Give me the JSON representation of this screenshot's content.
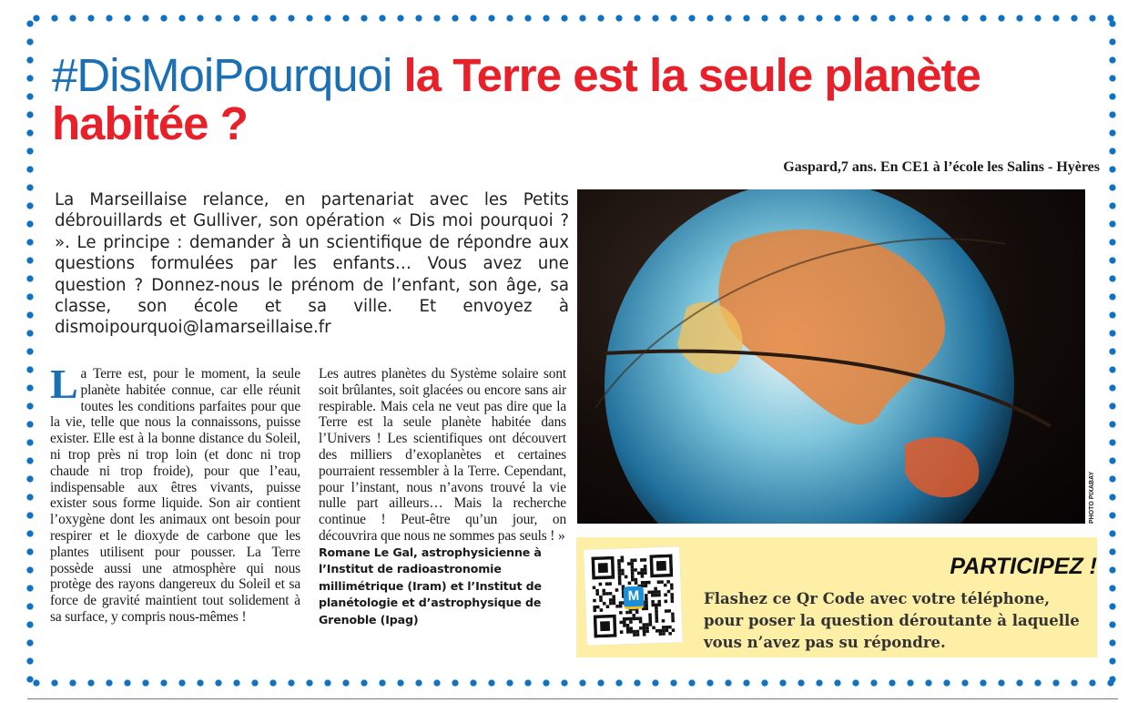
{
  "header": {
    "hashtag": "#DisMoiPourquoi",
    "question": " la Terre est la seule planète habitée ?"
  },
  "caption": "Gaspard,7 ans. En CE1 à l’école les Salins - Hyères",
  "intro": "La Marseillaise relance, en partenariat avec les Petits débrouillards et Gulliver, son opération « Dis moi pourquoi ? ». Le principe : demander à un scientifique de répondre aux questions formulées par les enfants… Vous avez une question ? Donnez-nous le prénom de l’enfant, son âge, sa classe, son école et sa ville. Et envoyez à dismoipourquoi@lamarseillaise.fr",
  "article": {
    "dropcap": "L",
    "col1": "a Terre est, pour le moment, la seule planète habitée connue, car elle réunit toutes les conditions parfaites pour que la vie, telle que nous la connaissons, puisse exister. Elle est à la bonne distance du Soleil, ni trop près ni trop loin (et donc ni trop chaude ni trop froide), pour que l’eau, indispensable aux êtres vivants, puisse exister sous forme liquide. Son air contient l’oxygène dont les animaux ont besoin pour respirer et le dioxyde de carbone que les plantes utilisent pour pousser. La Terre possède aussi une atmosphère qui nous protège des rayons dangereux du Soleil et sa force de gravité maintient tout solidement à sa surface, y compris nous-mêmes !",
    "col2": "Les autres planètes du Système solaire sont soit brûlantes, soit glacées ou encore sans air respirable. Mais cela ne veut pas dire que la Terre est la seule planète habitée dans l’Univers ! Les scientifiques ont découvert des milliers d’exoplanètes et certaines pourraient ressembler à la Terre. Cependant, pour l’instant, nous n’avons trouvé la vie nulle part ailleurs… Mais la recherche continue ! Peut-être qu’un jour, on découvrira que nous ne sommes pas seuls ! »",
    "signature": "Romane Le Gal, astrophysicienne à l’Institut de radioastronomie millimétrique (Iram) et l’Institut de planétologie et d’astrophysique de Grenoble (Ipag)"
  },
  "photo": {
    "credit": "PHOTO PIXABAY"
  },
  "participate": {
    "title": "PARTICIPEZ !",
    "text": "Flashez ce Qr Code avec votre téléphone, pour poser la question déroutante à laquelle vous n’avez pas su répondre.",
    "qr_logo": "M"
  },
  "colors": {
    "blue": "#1a6fb5",
    "red": "#e8202a",
    "box": "#fdf0a6"
  }
}
